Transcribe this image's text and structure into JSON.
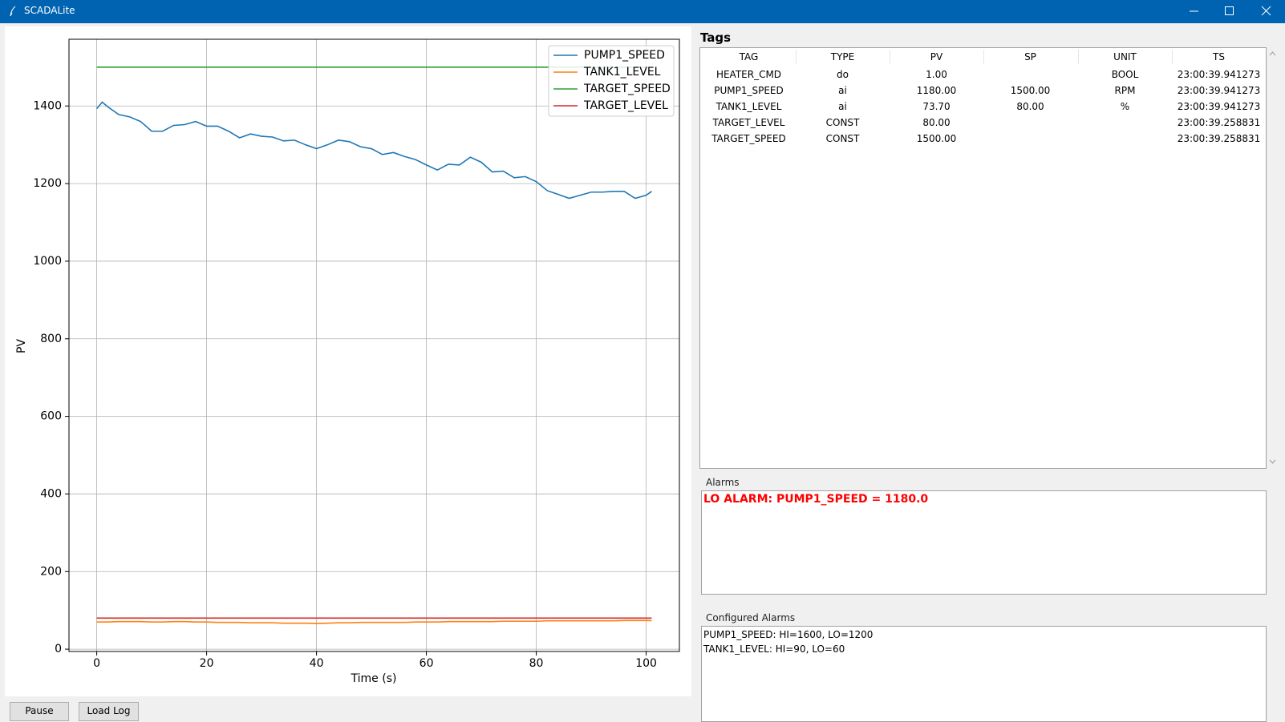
{
  "window": {
    "title": "SCADALite"
  },
  "buttons": [
    "Pause",
    "Load Log"
  ],
  "chart_data": {
    "type": "line",
    "xlabel": "Time (s)",
    "ylabel": "PV",
    "x": [
      0,
      1,
      2,
      4,
      6,
      8,
      10,
      12,
      14,
      16,
      18,
      20,
      22,
      24,
      26,
      28,
      30,
      32,
      34,
      36,
      38,
      40,
      42,
      44,
      46,
      48,
      50,
      52,
      54,
      56,
      58,
      60,
      62,
      64,
      66,
      68,
      70,
      72,
      74,
      76,
      78,
      80,
      82,
      84,
      86,
      88,
      90,
      92,
      94,
      96,
      98,
      100,
      101
    ],
    "series": [
      {
        "name": "PUMP1_SPEED",
        "color": "#1f77b4",
        "values": [
          1393,
          1410,
          1398,
          1378,
          1372,
          1360,
          1335,
          1335,
          1350,
          1352,
          1360,
          1348,
          1348,
          1335,
          1318,
          1328,
          1322,
          1320,
          1310,
          1312,
          1300,
          1290,
          1300,
          1312,
          1308,
          1295,
          1290,
          1275,
          1280,
          1270,
          1262,
          1248,
          1235,
          1250,
          1248,
          1268,
          1255,
          1230,
          1232,
          1215,
          1218,
          1205,
          1182,
          1172,
          1162,
          1170,
          1178,
          1178,
          1180,
          1180,
          1162,
          1170,
          1180
        ]
      },
      {
        "name": "TANK1_LEVEL",
        "color": "#ff7f0e",
        "values": [
          70,
          70,
          70,
          71,
          71,
          71,
          70,
          70,
          71,
          71,
          70,
          70,
          69,
          69,
          69,
          68,
          68,
          68,
          67,
          67,
          67,
          66,
          67,
          68,
          68,
          69,
          69,
          69,
          69,
          69,
          70,
          70,
          70,
          71,
          71,
          71,
          71,
          71,
          72,
          72,
          72,
          72,
          73,
          73,
          73,
          73,
          73,
          73,
          73,
          74,
          74,
          74,
          73.7
        ]
      },
      {
        "name": "TARGET_SPEED",
        "color": "#2ca02c",
        "values": [
          1500,
          1500,
          1500,
          1500,
          1500,
          1500,
          1500,
          1500,
          1500,
          1500,
          1500,
          1500,
          1500,
          1500,
          1500,
          1500,
          1500,
          1500,
          1500,
          1500,
          1500,
          1500,
          1500,
          1500,
          1500,
          1500,
          1500,
          1500,
          1500,
          1500,
          1500,
          1500,
          1500,
          1500,
          1500,
          1500,
          1500,
          1500,
          1500,
          1500,
          1500,
          1500,
          1500,
          1500,
          1500,
          1500,
          1500,
          1500,
          1500,
          1500,
          1500,
          1500,
          1500
        ]
      },
      {
        "name": "TARGET_LEVEL",
        "color": "#d62728",
        "values": [
          80,
          80,
          80,
          80,
          80,
          80,
          80,
          80,
          80,
          80,
          80,
          80,
          80,
          80,
          80,
          80,
          80,
          80,
          80,
          80,
          80,
          80,
          80,
          80,
          80,
          80,
          80,
          80,
          80,
          80,
          80,
          80,
          80,
          80,
          80,
          80,
          80,
          80,
          80,
          80,
          80,
          80,
          80,
          80,
          80,
          80,
          80,
          80,
          80,
          80,
          80,
          80,
          80
        ]
      }
    ],
    "xlim": [
      -5.05,
      106.05
    ],
    "xticks": [
      0,
      20,
      40,
      60,
      80,
      100
    ],
    "ylim": [
      -6,
      1572
    ],
    "yticks": [
      0,
      200,
      400,
      600,
      800,
      1000,
      1200,
      1400
    ],
    "grid": true,
    "legend": "upper right"
  },
  "tags": {
    "title": "Tags",
    "columns": [
      "TAG",
      "TYPE",
      "PV",
      "SP",
      "UNIT",
      "TS"
    ],
    "rows": [
      [
        "HEATER_CMD",
        "do",
        "1.00",
        null,
        "BOOL",
        "23:00:39.941273"
      ],
      [
        "PUMP1_SPEED",
        "ai",
        "1180.00",
        "1500.00",
        "RPM",
        "23:00:39.941273"
      ],
      [
        "TANK1_LEVEL",
        "ai",
        "73.70",
        "80.00",
        "%",
        "23:00:39.941273"
      ],
      [
        "TARGET_LEVEL",
        "CONST",
        "80.00",
        null,
        null,
        "23:00:39.258831"
      ],
      [
        "TARGET_SPEED",
        "CONST",
        "1500.00",
        null,
        null,
        "23:00:39.258831"
      ]
    ]
  },
  "alarms": {
    "title": "Alarms",
    "lines": [
      "LO ALARM: PUMP1_SPEED = 1180.0"
    ]
  },
  "configured_alarms": {
    "title": "Configured Alarms",
    "lines": [
      "PUMP1_SPEED: HI=1600, LO=1200",
      "TANK1_LEVEL: HI=90, LO=60"
    ]
  }
}
